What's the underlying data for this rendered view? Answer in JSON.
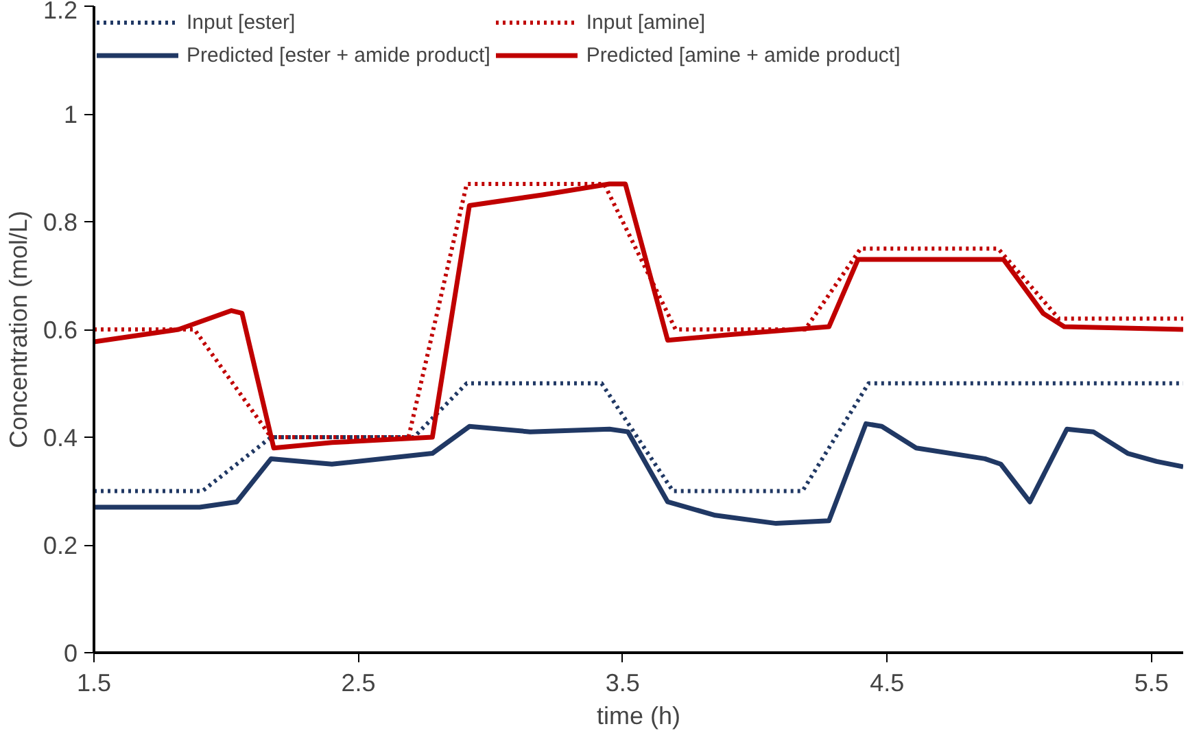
{
  "chart_data": {
    "type": "line",
    "xlabel": "time (h)",
    "ylabel": "Concentration (mol/L)",
    "xlim": [
      1.5,
      5.62
    ],
    "xticks": [
      1.5,
      2.5,
      3.5,
      4.5,
      5.5
    ],
    "ylim": [
      0,
      1.2
    ],
    "yticks": [
      0,
      0.2,
      0.4,
      0.6,
      0.8,
      1,
      1.2
    ],
    "grid": false,
    "legend": "top",
    "marker": "none",
    "series": [
      {
        "name": "Input [ester]",
        "color": "#203864",
        "line_style": "dotted",
        "x": [
          1.5,
          1.91,
          2.17,
          2.71,
          2.91,
          3.42,
          3.69,
          4.18,
          4.43,
          5.62
        ],
        "values": [
          0.3,
          0.3,
          0.4,
          0.4,
          0.5,
          0.5,
          0.3,
          0.3,
          0.5,
          0.5
        ]
      },
      {
        "name": "Input [amine]",
        "color": "#c00000",
        "line_style": "dotted",
        "x": [
          1.5,
          1.88,
          2.17,
          2.69,
          2.91,
          3.43,
          3.7,
          4.19,
          4.4,
          4.92,
          5.15,
          5.62
        ],
        "values": [
          0.6,
          0.6,
          0.4,
          0.4,
          0.87,
          0.87,
          0.6,
          0.6,
          0.75,
          0.75,
          0.62,
          0.62
        ]
      },
      {
        "name": "Predicted [ester + amide product]",
        "color": "#203864",
        "line_style": "solid",
        "x": [
          1.5,
          1.9,
          2.04,
          2.17,
          2.4,
          2.78,
          2.92,
          3.15,
          3.45,
          3.52,
          3.67,
          3.85,
          4.08,
          4.28,
          4.42,
          4.48,
          4.61,
          4.87,
          4.93,
          5.04,
          5.18,
          5.28,
          5.41,
          5.52,
          5.62
        ],
        "values": [
          0.27,
          0.27,
          0.28,
          0.36,
          0.35,
          0.37,
          0.42,
          0.41,
          0.415,
          0.41,
          0.28,
          0.255,
          0.24,
          0.245,
          0.425,
          0.42,
          0.38,
          0.36,
          0.35,
          0.28,
          0.415,
          0.41,
          0.37,
          0.355,
          0.345
        ]
      },
      {
        "name": "Predicted [amine + amide product]",
        "color": "#c00000",
        "line_style": "solid",
        "x": [
          1.5,
          1.82,
          2.02,
          2.06,
          2.18,
          2.4,
          2.78,
          2.92,
          3.2,
          3.45,
          3.51,
          3.67,
          3.9,
          4.28,
          4.39,
          4.94,
          5.09,
          5.17,
          5.62
        ],
        "values": [
          0.577,
          0.6,
          0.635,
          0.63,
          0.38,
          0.39,
          0.4,
          0.83,
          0.85,
          0.87,
          0.87,
          0.58,
          0.59,
          0.605,
          0.73,
          0.73,
          0.63,
          0.605,
          0.6
        ]
      }
    ]
  }
}
